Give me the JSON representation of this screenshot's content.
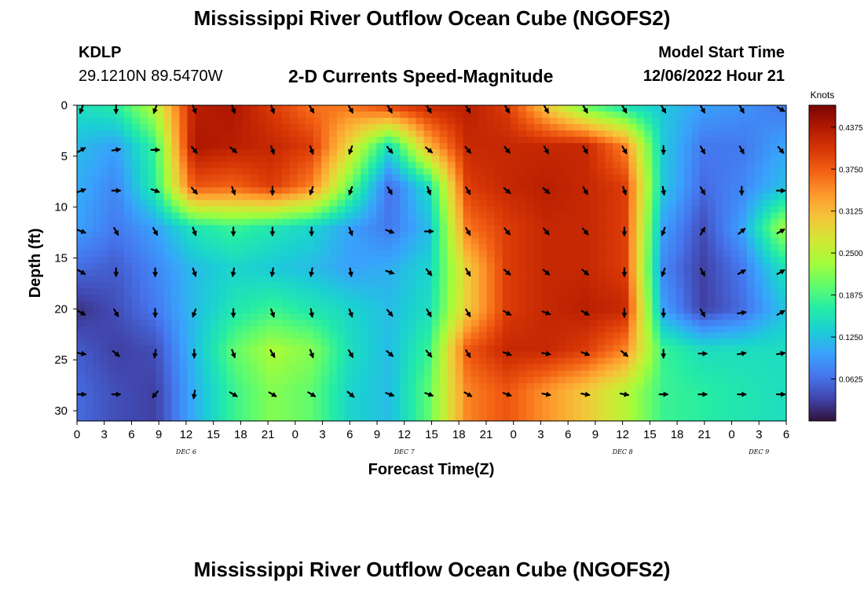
{
  "header": {
    "title": "Mississippi River Outflow Ocean Cube (NGOFS2)",
    "station_id": "KDLP",
    "station_coords": "29.1210N  89.5470W",
    "subtitle": "2-D Currents Speed-Magnitude",
    "model_start_label": "Model Start Time",
    "model_start_value": "12/06/2022 Hour 21"
  },
  "footer": {
    "title_repeat": "Mississippi River Outflow Ocean Cube (NGOFS2)"
  },
  "colors": {
    "palette": [
      "#30123b",
      "#4145ab",
      "#4675ed",
      "#39a2fc",
      "#1bcfd4",
      "#24eca6",
      "#61fc6c",
      "#a4fc3b",
      "#d1e834",
      "#f3c63a",
      "#fe9b2d",
      "#f36315",
      "#d93806",
      "#b11901",
      "#7a0403"
    ]
  },
  "chart_data": {
    "type": "heatmap",
    "title": "2-D Currents Speed-Magnitude",
    "xlabel": "Forecast Time(Z)",
    "ylabel": "Depth (ft)",
    "colorbar_label": "Knots",
    "xlim": [
      0,
      78
    ],
    "ylim": [
      31,
      0
    ],
    "x_ticks": [
      0,
      3,
      6,
      9,
      12,
      15,
      18,
      21,
      24,
      27,
      30,
      33,
      36,
      39,
      42,
      45,
      48,
      51,
      54,
      57,
      60,
      63,
      66,
      69,
      72,
      75,
      78
    ],
    "x_tick_labels": [
      "0",
      "3",
      "6",
      "9",
      "12",
      "15",
      "18",
      "21",
      "0",
      "3",
      "6",
      "9",
      "12",
      "15",
      "18",
      "21",
      "0",
      "3",
      "6",
      "9",
      "12",
      "15",
      "18",
      "21",
      "0",
      "3",
      "6"
    ],
    "date_labels": [
      {
        "x": 12,
        "text": "DEC 6"
      },
      {
        "x": 36,
        "text": "DEC 7"
      },
      {
        "x": 60,
        "text": "DEC 8"
      },
      {
        "x": 75,
        "text": "DEC 9"
      }
    ],
    "y_ticks": [
      0,
      5,
      10,
      15,
      20,
      25,
      30
    ],
    "colorbar": {
      "min": 0,
      "max": 0.47,
      "ticks": [
        0.0625,
        0.125,
        0.1875,
        0.25,
        0.3125,
        0.375,
        0.4375
      ],
      "tick_labels": [
        "0.0625",
        "0.1250",
        "0.1875",
        "0.2500",
        "0.3125",
        "0.3750",
        "0.4375"
      ]
    },
    "time_hours": [
      0,
      4.3,
      8.6,
      12.9,
      17.2,
      21.5,
      25.8,
      30.1,
      34.4,
      38.7,
      43,
      47.3,
      51.6,
      55.9,
      60.2,
      64.5,
      68.8,
      73.1,
      77.4
    ],
    "depths_ft": [
      0,
      4,
      8,
      12,
      16,
      20,
      24,
      28
    ],
    "speed_knots": [
      [
        0.15,
        0.17,
        0.25,
        0.43,
        0.44,
        0.4,
        0.36,
        0.36,
        0.4,
        0.42,
        0.43,
        0.4,
        0.3,
        0.2,
        0.15,
        0.13,
        0.1,
        0.09,
        0.07
      ],
      [
        0.12,
        0.1,
        0.18,
        0.44,
        0.43,
        0.42,
        0.4,
        0.28,
        0.15,
        0.32,
        0.42,
        0.42,
        0.42,
        0.42,
        0.35,
        0.13,
        0.07,
        0.07,
        0.1
      ],
      [
        0.11,
        0.08,
        0.17,
        0.38,
        0.37,
        0.4,
        0.35,
        0.2,
        0.06,
        0.15,
        0.4,
        0.42,
        0.43,
        0.42,
        0.4,
        0.13,
        0.06,
        0.08,
        0.12
      ],
      [
        0.1,
        0.07,
        0.1,
        0.16,
        0.18,
        0.16,
        0.14,
        0.1,
        0.07,
        0.12,
        0.36,
        0.4,
        0.42,
        0.42,
        0.4,
        0.1,
        0.04,
        0.1,
        0.23
      ],
      [
        0.06,
        0.05,
        0.08,
        0.12,
        0.14,
        0.13,
        0.12,
        0.1,
        0.11,
        0.14,
        0.3,
        0.4,
        0.42,
        0.42,
        0.4,
        0.08,
        0.03,
        0.07,
        0.15
      ],
      [
        0.02,
        0.04,
        0.07,
        0.12,
        0.16,
        0.18,
        0.16,
        0.14,
        0.12,
        0.15,
        0.3,
        0.4,
        0.42,
        0.43,
        0.42,
        0.1,
        0.03,
        0.06,
        0.12
      ],
      [
        0.05,
        0.03,
        0.04,
        0.12,
        0.2,
        0.24,
        0.22,
        0.15,
        0.12,
        0.18,
        0.38,
        0.42,
        0.42,
        0.4,
        0.35,
        0.18,
        0.15,
        0.15,
        0.15
      ],
      [
        0.06,
        0.04,
        0.03,
        0.11,
        0.18,
        0.22,
        0.2,
        0.14,
        0.12,
        0.2,
        0.35,
        0.38,
        0.34,
        0.3,
        0.25,
        0.18,
        0.17,
        0.16,
        0.15
      ]
    ],
    "arrow_times": [
      0.5,
      4.3,
      8.6,
      12.9,
      17.2,
      21.5,
      25.8,
      30.1,
      34.4,
      38.7,
      43,
      47.3,
      51.6,
      55.9,
      60.2,
      64.5,
      68.8,
      73.1,
      77.4
    ],
    "arrow_depths": [
      0,
      4,
      8,
      12,
      16,
      20,
      24,
      28
    ],
    "arrow_direction_deg": [
      [
        200,
        180,
        200,
        160,
        160,
        160,
        150,
        150,
        150,
        150,
        150,
        150,
        150,
        150,
        150,
        150,
        150,
        150,
        120
      ],
      [
        60,
        80,
        90,
        140,
        130,
        160,
        160,
        200,
        140,
        130,
        140,
        140,
        150,
        150,
        150,
        180,
        150,
        150,
        140
      ],
      [
        70,
        90,
        110,
        140,
        160,
        180,
        200,
        200,
        150,
        160,
        150,
        130,
        130,
        150,
        160,
        170,
        150,
        180,
        90
      ],
      [
        110,
        150,
        150,
        160,
        180,
        180,
        180,
        160,
        110,
        90,
        150,
        140,
        140,
        140,
        180,
        200,
        30,
        50,
        60
      ],
      [
        120,
        180,
        180,
        160,
        190,
        190,
        190,
        170,
        110,
        140,
        150,
        130,
        130,
        130,
        180,
        200,
        150,
        60,
        60
      ],
      [
        120,
        150,
        180,
        200,
        180,
        160,
        170,
        160,
        140,
        150,
        150,
        120,
        110,
        120,
        180,
        180,
        150,
        80,
        60
      ],
      [
        100,
        130,
        190,
        180,
        160,
        150,
        160,
        150,
        130,
        140,
        150,
        110,
        100,
        110,
        130,
        180,
        90,
        80,
        80
      ],
      [
        90,
        90,
        220,
        190,
        120,
        120,
        120,
        130,
        110,
        110,
        120,
        110,
        100,
        100,
        100,
        90,
        90,
        90,
        90
      ]
    ]
  }
}
